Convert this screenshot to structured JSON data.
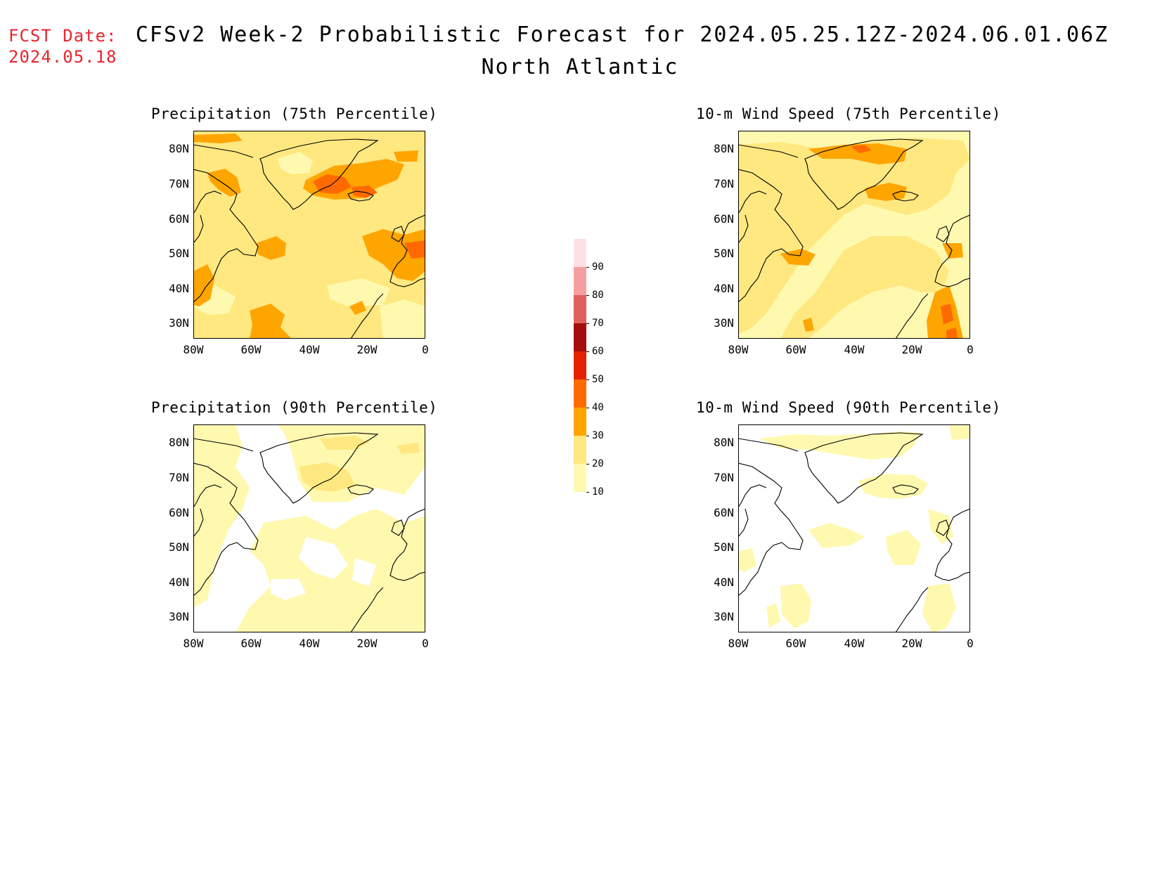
{
  "header": {
    "fcst_label": "FCST Date:",
    "fcst_date": "2024.05.18",
    "title": "CFSv2 Week-2 Probabilistic Forecast for 2024.05.25.12Z-2024.06.01.06Z",
    "subtitle": "North Atlantic"
  },
  "axes": {
    "lat_labels": [
      "80N",
      "70N",
      "60N",
      "50N",
      "40N",
      "30N"
    ],
    "lon_labels": [
      "80W",
      "60W",
      "40W",
      "20W",
      "0"
    ]
  },
  "panels": [
    {
      "title": "Precipitation (75th Percentile)",
      "variable": "precipitation",
      "percentile": 75,
      "shading_level": "high"
    },
    {
      "title": "10-m Wind Speed (75th Percentile)",
      "variable": "10m_wind_speed",
      "percentile": 75,
      "shading_level": "medium"
    },
    {
      "title": "Precipitation (90th Percentile)",
      "variable": "precipitation",
      "percentile": 90,
      "shading_level": "low"
    },
    {
      "title": "10-m Wind Speed (90th Percentile)",
      "variable": "10m_wind_speed",
      "percentile": 90,
      "shading_level": "lowest"
    }
  ],
  "colorbar": {
    "levels": [
      "10",
      "20",
      "30",
      "40",
      "50",
      "60",
      "70",
      "80",
      "90"
    ],
    "colors": [
      "#fff9b0",
      "#ffe880",
      "#ffa500",
      "#ff6a00",
      "#e52200",
      "#a50d0d",
      "#e06060",
      "#f5a0a0",
      "#fde0e4"
    ]
  }
}
